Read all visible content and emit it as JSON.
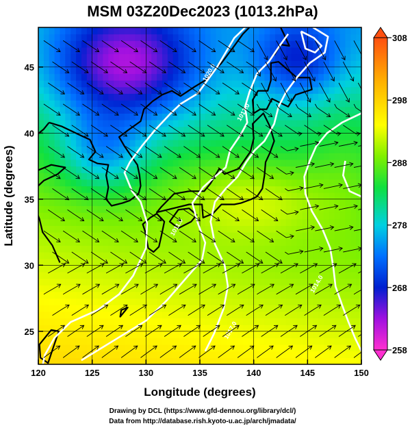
{
  "chart_data": {
    "type": "heatmap",
    "title": "MSM 03Z20Dec2023 (1013.2hPa)",
    "xlabel": "Longitude (degrees)",
    "ylabel": "Latitude  (degrees)",
    "xlim": [
      120,
      150
    ],
    "ylim": [
      22.5,
      48
    ],
    "x_ticks": [
      120,
      125,
      130,
      135,
      140,
      145,
      150
    ],
    "y_ticks": [
      25,
      30,
      35,
      40,
      45
    ],
    "grid": true,
    "colorbar": {
      "min": 258,
      "max": 308,
      "ticks": [
        258,
        268,
        278,
        288,
        298,
        308
      ],
      "colors": [
        "#ff2fd0",
        "#a010e0",
        "#0020d0",
        "#0070ff",
        "#00d0e0",
        "#10e040",
        "#80f000",
        "#ffff00",
        "#ffb000",
        "#ff5010"
      ]
    },
    "contours": [
      {
        "label": "1020.0",
        "lon": 136.0,
        "lat": 44.5
      },
      {
        "label": "1017.0",
        "lon": 139.2,
        "lat": 41.5
      },
      {
        "label": "1011.0",
        "lon": 133.0,
        "lat": 32.8
      },
      {
        "label": "1014.0",
        "lon": 146.0,
        "lat": 28.5
      },
      {
        "label": "1017.0",
        "lon": 138.0,
        "lat": 25.0
      }
    ]
  },
  "credits": {
    "line1": "Drawing by DCL (https://www.gfd-dennou.org/library/dcl/)",
    "line2": "Data from http://database.rish.kyoto-u.ac.jp/arch/jmadata/"
  }
}
